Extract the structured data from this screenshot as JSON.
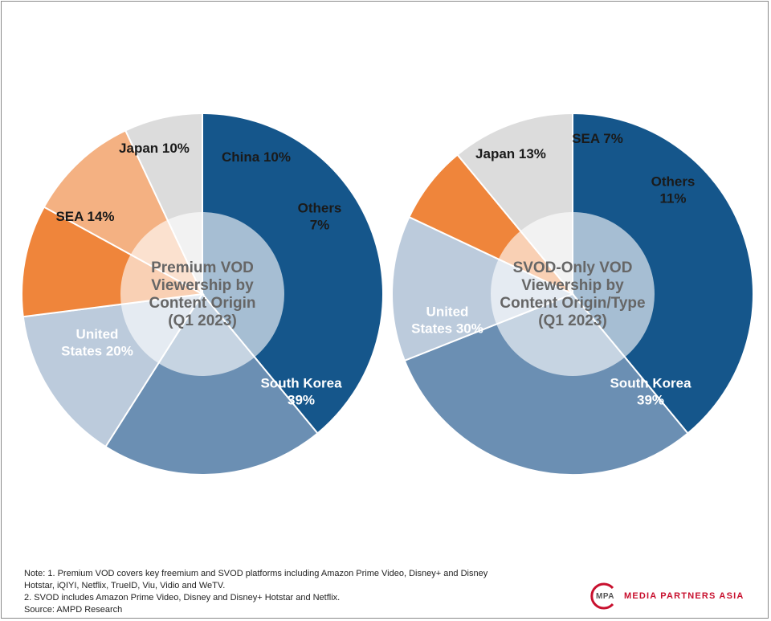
{
  "chart_data": [
    {
      "type": "pie",
      "title": "Premium VOD Viewership by Content Origin (Q1 2023)",
      "title_lines": [
        "Premium VOD",
        "Viewership by",
        "Content Origin",
        "(Q1 2023)"
      ],
      "slices": [
        {
          "name": "South Korea",
          "value": 39,
          "color": "#15568b",
          "label_lines": [
            "South Korea",
            "39%"
          ],
          "text_color": "#ffffff"
        },
        {
          "name": "United States",
          "value": 20,
          "color": "#6b8fb3",
          "label_lines": [
            "United",
            "States 20%"
          ],
          "text_color": "#ffffff"
        },
        {
          "name": "SEA",
          "value": 14,
          "color": "#bccbdc",
          "label_lines": [
            "SEA 14%"
          ],
          "text_color": "#1a1a1a"
        },
        {
          "name": "Japan",
          "value": 10,
          "color": "#ef853b",
          "label_lines": [
            "Japan 10%"
          ],
          "text_color": "#1a1a1a"
        },
        {
          "name": "China",
          "value": 10,
          "color": "#f4b182",
          "label_lines": [
            "China 10%"
          ],
          "text_color": "#1a1a1a"
        },
        {
          "name": "Others",
          "value": 7,
          "color": "#dcdcdc",
          "label_lines": [
            "Others",
            "7%"
          ],
          "text_color": "#1a1a1a"
        }
      ]
    },
    {
      "type": "pie",
      "title": "SVOD-Only VOD Viewership by Content Origin/Type (Q1 2023)",
      "title_lines": [
        "SVOD-Only VOD",
        "Viewership by",
        "Content Origin/Type",
        "(Q1 2023)"
      ],
      "slices": [
        {
          "name": "South Korea",
          "value": 39,
          "color": "#15568b",
          "label_lines": [
            "South Korea",
            "39%"
          ],
          "text_color": "#ffffff"
        },
        {
          "name": "United States",
          "value": 30,
          "color": "#6b8fb3",
          "label_lines": [
            "United",
            "States 30%"
          ],
          "text_color": "#ffffff"
        },
        {
          "name": "Japan",
          "value": 13,
          "color": "#bccbdc",
          "label_lines": [
            "Japan 13%"
          ],
          "text_color": "#1a1a1a"
        },
        {
          "name": "SEA",
          "value": 7,
          "color": "#ef853b",
          "label_lines": [
            "SEA 7%"
          ],
          "text_color": "#1a1a1a"
        },
        {
          "name": "Others",
          "value": 11,
          "color": "#dcdcdc",
          "label_lines": [
            "Others",
            "11%"
          ],
          "text_color": "#1a1a1a"
        }
      ]
    }
  ],
  "notes": {
    "line1": "Note: 1. Premium VOD covers key freemium and SVOD platforms including Amazon Prime Video, Disney+ and Disney",
    "line2": "Hotstar, iQIYI, Netflix, TrueID, Viu, Vidio and WeTV.",
    "line3": "2. SVOD includes Amazon Prime Video, Disney and Disney+ Hotstar and Netflix.",
    "line4": "Source: AMPD Research"
  },
  "logo": {
    "mark_text": "MPA",
    "name": "MEDIA PARTNERS ASIA",
    "color": "#c8102e"
  }
}
